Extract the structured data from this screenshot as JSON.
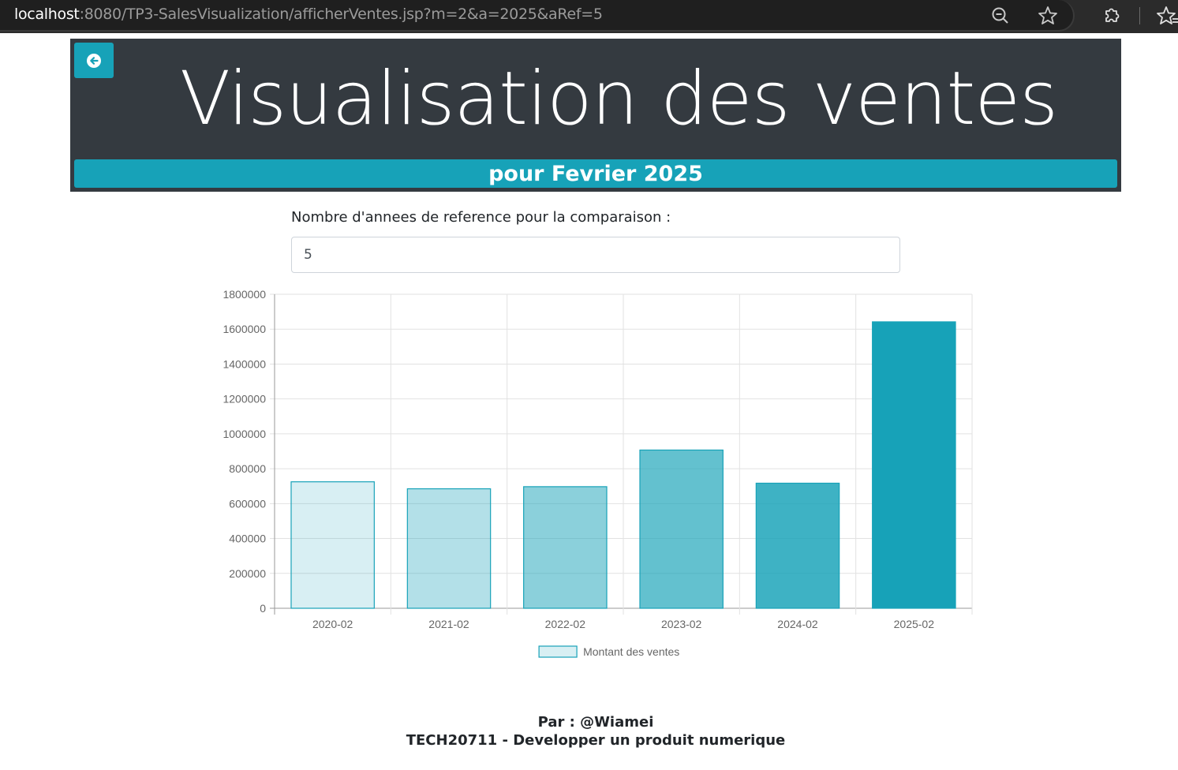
{
  "browser": {
    "url_host": "localhost",
    "url_rest": ":8080/TP3-SalesVisualization/afficherVentes.jsp?m=2&a=2025&aRef=5"
  },
  "header": {
    "title": "Visualisation des ventes",
    "subtitle": "pour Fevrier 2025"
  },
  "form": {
    "label": "Nombre d'annees de reference pour la comparaison :",
    "value": "5"
  },
  "colors": {
    "accent": "#17a2b8",
    "header_bg": "#343a40"
  },
  "chart_data": {
    "type": "bar",
    "categories": [
      "2020-02",
      "2021-02",
      "2022-02",
      "2023-02",
      "2024-02",
      "2025-02"
    ],
    "series": [
      {
        "name": "Montant des ventes",
        "values": [
          725000,
          685000,
          697000,
          907000,
          717000,
          1642000
        ],
        "fill_opacities": [
          0.17,
          0.33,
          0.5,
          0.67,
          0.83,
          1.0
        ],
        "color": "#17a2b8"
      }
    ],
    "ylim": [
      0,
      1800000
    ],
    "yticks": [
      "0",
      "200000",
      "400000",
      "600000",
      "800000",
      "1000000",
      "1200000",
      "1400000",
      "1600000",
      "1800000"
    ],
    "grid": true,
    "legend": "bottom"
  },
  "footer": {
    "author": "Par : @Wiamei",
    "course": "TECH20711 - Developper un produit numerique"
  }
}
